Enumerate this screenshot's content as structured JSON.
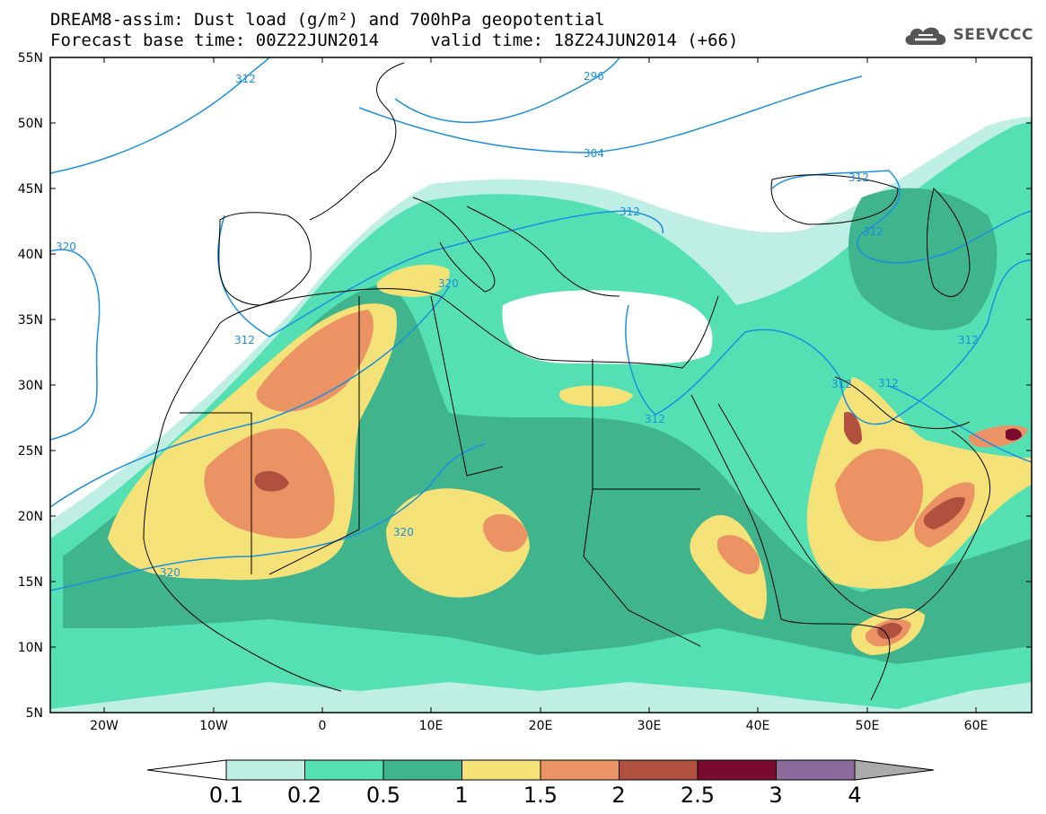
{
  "header": {
    "line1": "DREAM8-assim: Dust load (g/m²) and 700hPa geopotential",
    "line2": "Forecast base time: 00Z22JUN2014     valid time: 18Z24JUN2014 (+66)"
  },
  "logo": {
    "text": "SEEVCCC",
    "icon": "cloud-icon"
  },
  "map": {
    "lat_labels": [
      "55N",
      "50N",
      "45N",
      "40N",
      "35N",
      "30N",
      "25N",
      "20N",
      "15N",
      "10N",
      "5N"
    ],
    "lon_labels": [
      "20W",
      "10W",
      "0",
      "10E",
      "20E",
      "30E",
      "40E",
      "50E",
      "60E"
    ],
    "lat_range": [
      5,
      55
    ],
    "lon_range": [
      -25,
      65
    ],
    "contour_labels": [
      "312",
      "296",
      "304",
      "312",
      "312",
      "320",
      "320",
      "312",
      "312",
      "312",
      "312",
      "312",
      "312",
      "320",
      "320"
    ]
  },
  "colorbar": {
    "labels": [
      "0.1",
      "0.2",
      "0.5",
      "1",
      "1.5",
      "2",
      "2.5",
      "3",
      "4"
    ],
    "colors": [
      "#bfeee4",
      "#55e0b4",
      "#40b48c",
      "#f4e278",
      "#ec9366",
      "#b0503e",
      "#7a0a2e",
      "#8c6a9c",
      "#aaaaaa"
    ],
    "under_color": "#ffffff"
  }
}
